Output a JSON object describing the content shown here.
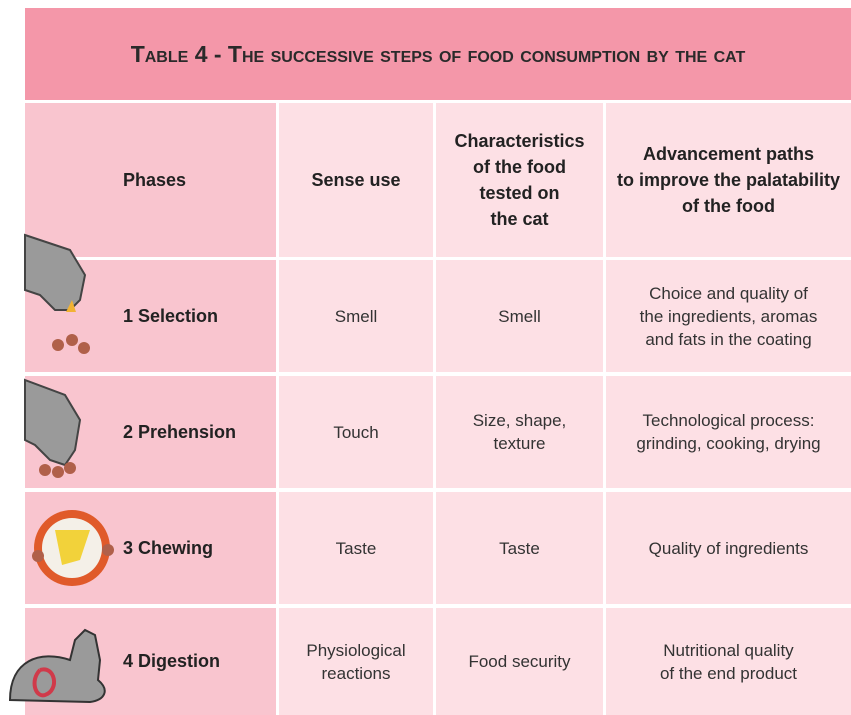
{
  "header": {
    "title": "Table 4 - The successive steps of food consumption by the cat"
  },
  "table": {
    "columns": [
      "Phases",
      "Sense use",
      "Characteristics\nof the food\ntested on\nthe cat",
      "Advancement paths\nto improve the palatability\nof the food"
    ],
    "rows": [
      [
        "1 Selection",
        "Smell",
        "Smell",
        "Choice and quality of\nthe ingredients, aromas\nand fats in the coating"
      ],
      [
        "2 Prehension",
        "Touch",
        "Size, shape,\ntexture",
        "Technological process:\ngrinding, cooking, drying"
      ],
      [
        "3 Chewing",
        "Taste",
        "Taste",
        "Quality of ingredients"
      ],
      [
        "4 Digestion",
        "Physiological\nreactions",
        "Food security",
        "Nutritional quality\nof the end product"
      ]
    ]
  }
}
